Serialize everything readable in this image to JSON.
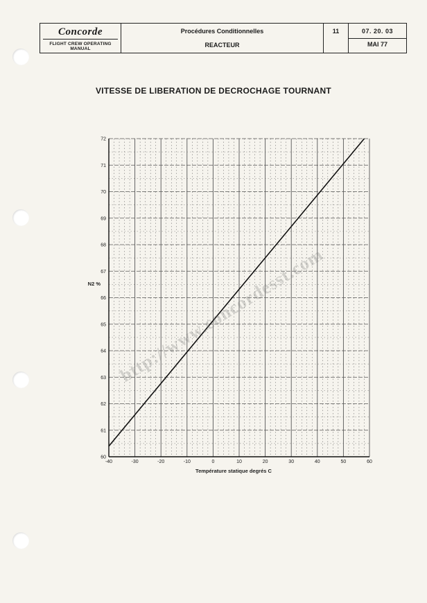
{
  "header": {
    "brand": "Concorde",
    "manual": "FLIGHT CREW OPERATING MANUAL",
    "title": "Procédures Conditionnelles",
    "subtitle": "REACTEUR",
    "section": "11",
    "reference": "07. 20. 03",
    "date": "MAI 77"
  },
  "watermark": "http://www.concordesst.com",
  "chart_data": {
    "type": "line",
    "title": "VITESSE DE LIBERATION DE DECROCHAGE TOURNANT",
    "xlabel": "Température statique degrés C",
    "ylabel": "N2 %",
    "xlim": [
      -40,
      60
    ],
    "ylim": [
      60,
      72
    ],
    "x_ticks": [
      "-40",
      "-30",
      "-20",
      "-10",
      "0",
      "10",
      "20",
      "30",
      "40",
      "50",
      "60"
    ],
    "y_ticks": [
      "60",
      "61",
      "62",
      "63",
      "64",
      "65",
      "66",
      "67",
      "68",
      "69",
      "70",
      "71",
      "72"
    ],
    "grid": true,
    "series": [
      {
        "x": [
          -40,
          58
        ],
        "y": [
          60.4,
          72
        ]
      }
    ]
  }
}
